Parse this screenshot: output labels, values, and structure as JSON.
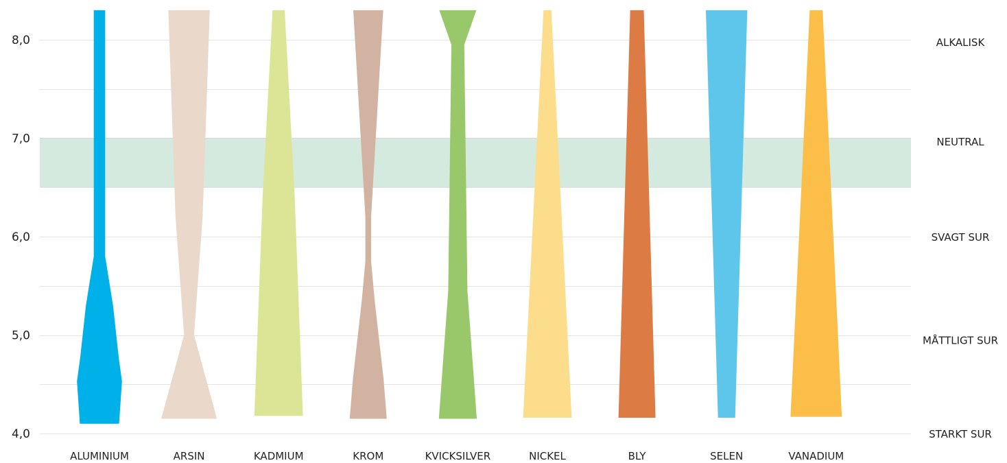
{
  "chart_data": {
    "type": "area",
    "title": "",
    "xlabel": "",
    "ylabel": "",
    "ylim": [
      4.0,
      8.3
    ],
    "y_ticks": [
      "4,0",
      "5,0",
      "6,0",
      "7,0",
      "8,0"
    ],
    "y_tick_values": [
      4.0,
      5.0,
      6.0,
      7.0,
      8.0
    ],
    "grid": true,
    "neutral_band": [
      6.5,
      7.0
    ],
    "zones": [
      {
        "label": "STARKT SUR",
        "value": 4.0
      },
      {
        "label": "MÅTTLIGT SUR",
        "value": 4.95
      },
      {
        "label": "SVAGT SUR",
        "value": 6.0
      },
      {
        "label": "NEUTRAL",
        "value": 6.97
      },
      {
        "label": "ALKALISK",
        "value": 7.98
      }
    ],
    "categories": [
      "ALUMINIUM",
      "ARSIN",
      "KADMIUM",
      "KROM",
      "KVICKSILVER",
      "NICKEL",
      "BLY",
      "SELEN",
      "VANADIUM"
    ],
    "series": [
      {
        "color": "#00b0e8",
        "profile": [
          [
            4.1,
            0.55
          ],
          [
            4.53,
            0.63
          ],
          [
            4.77,
            0.54
          ],
          [
            5.3,
            0.38
          ],
          [
            5.8,
            0.16
          ],
          [
            8.3,
            0.16
          ]
        ]
      },
      {
        "color": "#ead9cb",
        "profile": [
          [
            4.15,
            0.78
          ],
          [
            5.0,
            0.14
          ],
          [
            6.2,
            0.38
          ],
          [
            8.3,
            0.58
          ]
        ]
      },
      {
        "color": "#dce595",
        "profile": [
          [
            4.18,
            0.68
          ],
          [
            6.4,
            0.45
          ],
          [
            8.3,
            0.17
          ]
        ]
      },
      {
        "color": "#d2b3a1",
        "profile": [
          [
            4.15,
            0.52
          ],
          [
            4.55,
            0.43
          ],
          [
            5.35,
            0.18
          ],
          [
            5.75,
            0.08
          ],
          [
            6.2,
            0.08
          ],
          [
            8.3,
            0.42
          ]
        ]
      },
      {
        "color": "#98c86a",
        "profile": [
          [
            4.15,
            0.53
          ],
          [
            5.45,
            0.27
          ],
          [
            7.95,
            0.18
          ],
          [
            8.3,
            0.52
          ]
        ]
      },
      {
        "color": "#fcdd8b",
        "profile": [
          [
            4.16,
            0.68
          ],
          [
            8.3,
            0.11
          ]
        ]
      },
      {
        "color": "#dd7b45",
        "profile": [
          [
            4.16,
            0.52
          ],
          [
            8.3,
            0.19
          ]
        ]
      },
      {
        "color": "#5dc6ea",
        "profile": [
          [
            4.16,
            0.24
          ],
          [
            8.3,
            0.58
          ]
        ]
      },
      {
        "color": "#fbbe49",
        "profile": [
          [
            4.17,
            0.72
          ],
          [
            8.3,
            0.18
          ]
        ]
      }
    ]
  }
}
